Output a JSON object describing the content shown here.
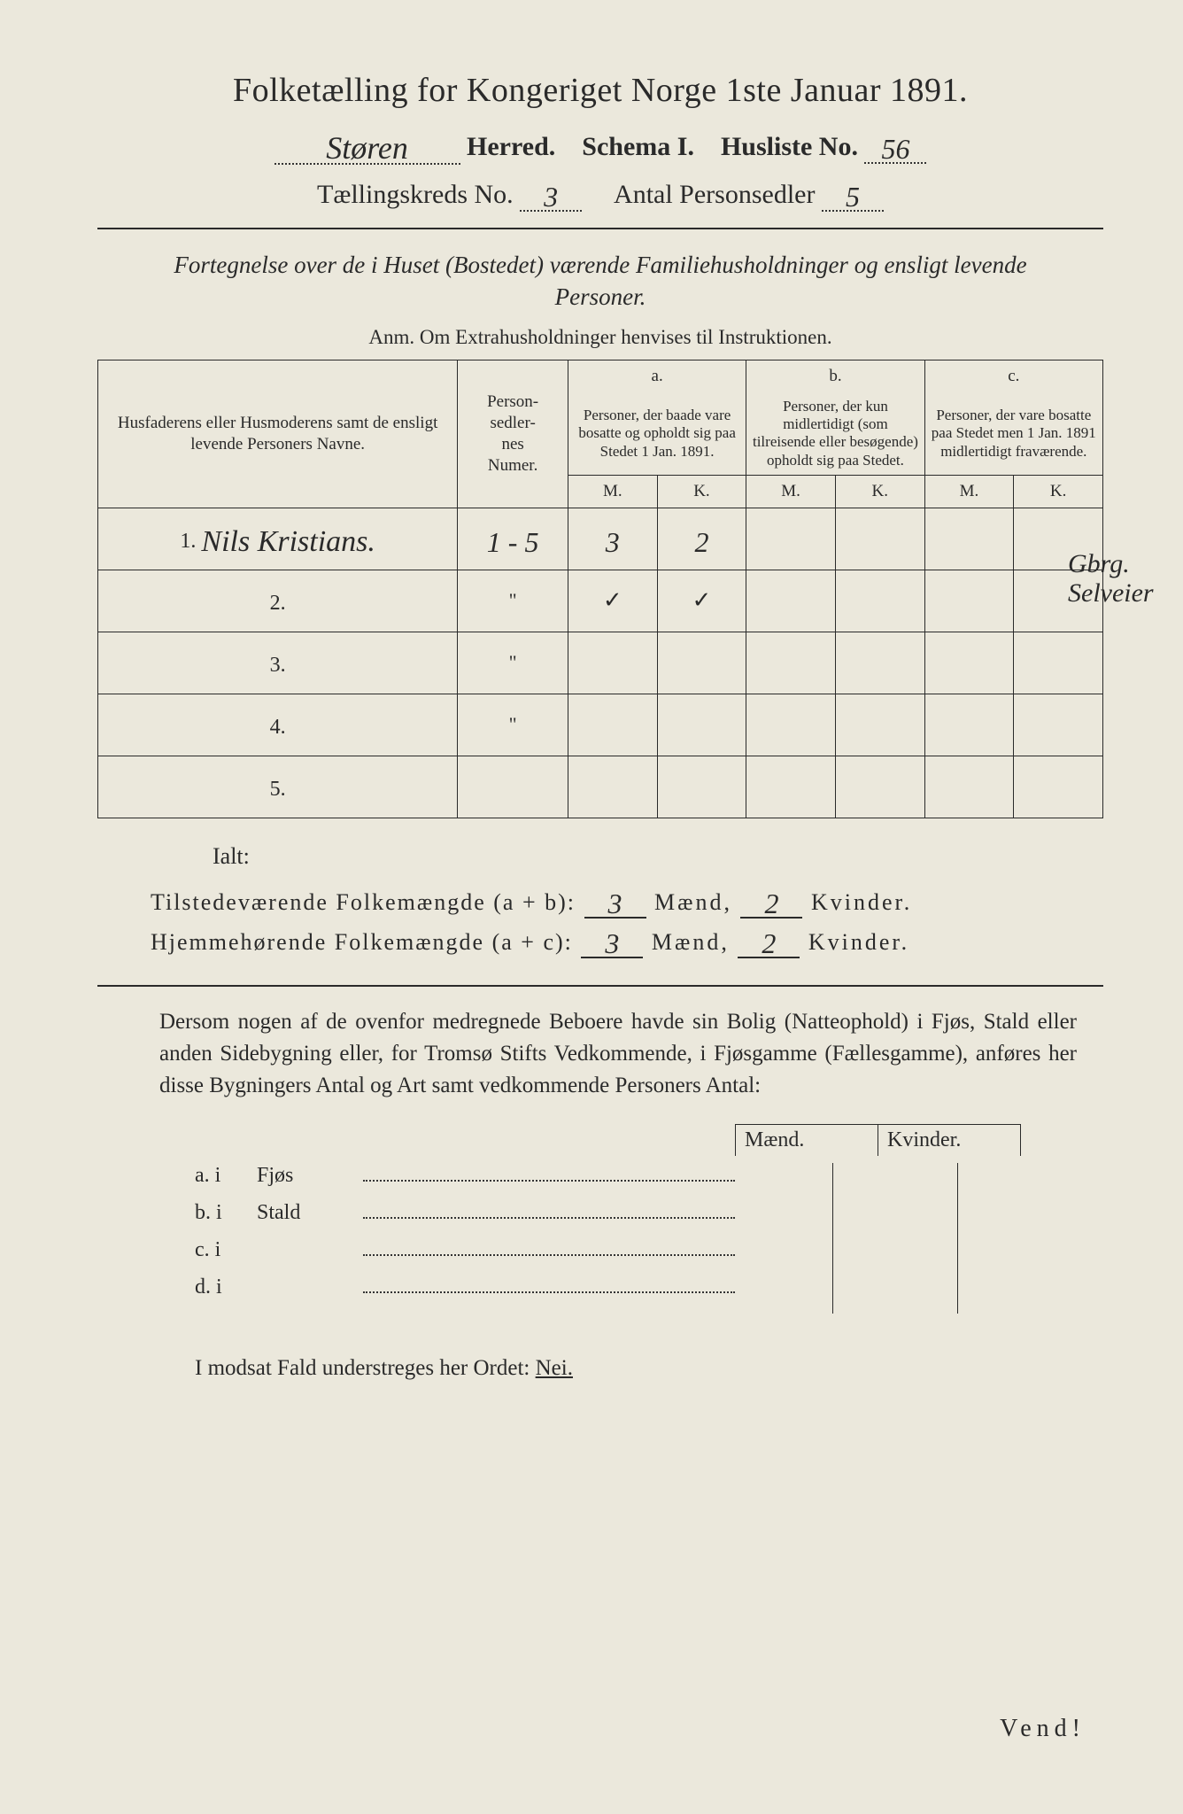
{
  "title": "Folketælling for Kongeriget Norge 1ste Januar 1891.",
  "line2": {
    "herred_hand": "Støren",
    "herred_label": "Herred.",
    "schema_label": "Schema I.",
    "husliste_label": "Husliste No.",
    "husliste_hand": "56"
  },
  "line3": {
    "kreds_label": "Tællingskreds No.",
    "kreds_hand": "3",
    "antal_label": "Antal Personsedler",
    "antal_hand": "5"
  },
  "subtitle": "Fortegnelse over de i Huset (Bostedet) værende Familiehusholdninger og ensligt levende Personer.",
  "anm_label": "Anm.  Om Extrahusholdninger henvises til Instruktionen.",
  "table": {
    "head_names": "Husfaderens eller Husmoderens samt de ensligt levende Personers Navne.",
    "head_num": "Person-\nsedler-\nnes\nNumer.",
    "head_a_top": "a.",
    "head_a": "Personer, der baade vare bosatte og opholdt sig paa Stedet 1 Jan. 1891.",
    "head_b_top": "b.",
    "head_b": "Personer, der kun midlertidigt (som tilreisende eller besøgende) opholdt sig paa Stedet.",
    "head_c_top": "c.",
    "head_c": "Personer, der vare bosatte paa Stedet men 1 Jan. 1891 midlertidigt fraværende.",
    "mk_m": "M.",
    "mk_k": "K.",
    "rows": [
      {
        "n": "1.",
        "name_hand": "Nils Kristians.",
        "num": "1 - 5",
        "a_m": "3",
        "a_k": "2",
        "b_m": "",
        "b_k": "",
        "c_m": "",
        "c_k": ""
      },
      {
        "n": "2.",
        "name_hand": "",
        "num": "\"",
        "a_m": "✓",
        "a_k": "✓",
        "b_m": "",
        "b_k": "",
        "c_m": "",
        "c_k": ""
      },
      {
        "n": "3.",
        "name_hand": "",
        "num": "\"",
        "a_m": "",
        "a_k": "",
        "b_m": "",
        "b_k": "",
        "c_m": "",
        "c_k": ""
      },
      {
        "n": "4.",
        "name_hand": "",
        "num": "\"",
        "a_m": "",
        "a_k": "",
        "b_m": "",
        "b_k": "",
        "c_m": "",
        "c_k": ""
      },
      {
        "n": "5.",
        "name_hand": "",
        "num": "",
        "a_m": "",
        "a_k": "",
        "b_m": "",
        "b_k": "",
        "c_m": "",
        "c_k": ""
      }
    ]
  },
  "margin_note_1": "Gbrg.",
  "margin_note_2": "Selveier",
  "ialt_label": "Ialt:",
  "sum1": {
    "label": "Tilstedeværende Folkemængde (a + b):",
    "m_hand": "3",
    "m_label": "Mænd,",
    "k_hand": "2",
    "k_label": "Kvinder."
  },
  "sum2": {
    "label": "Hjemmehørende Folkemængde (a + c):",
    "m_hand": "3",
    "m_label": "Mænd,",
    "k_hand": "2",
    "k_label": "Kvinder."
  },
  "para": "Dersom nogen af de ovenfor medregnede Beboere havde sin Bolig (Natteophold) i Fjøs, Stald eller anden Sidebygning eller, for Tromsø Stifts Vedkommende, i Fjøsgamme (Fællesgamme), anføres her disse Bygningers Antal og Art samt vedkommende Personers Antal:",
  "mk_head_m": "Mænd.",
  "mk_head_k": "Kvinder.",
  "bygn": [
    {
      "lab": "a.  i",
      "type": "Fjøs"
    },
    {
      "lab": "b.  i",
      "type": "Stald"
    },
    {
      "lab": "c.  i",
      "type": ""
    },
    {
      "lab": "d.  i",
      "type": ""
    }
  ],
  "nei": {
    "pre": "I modsat Fald understreges her Ordet: ",
    "word": "Nei."
  },
  "vend": "Vend!",
  "colors": {
    "paper": "#ebe8dc",
    "ink": "#2a2a2a",
    "page_bg": "#1a1a1a"
  }
}
